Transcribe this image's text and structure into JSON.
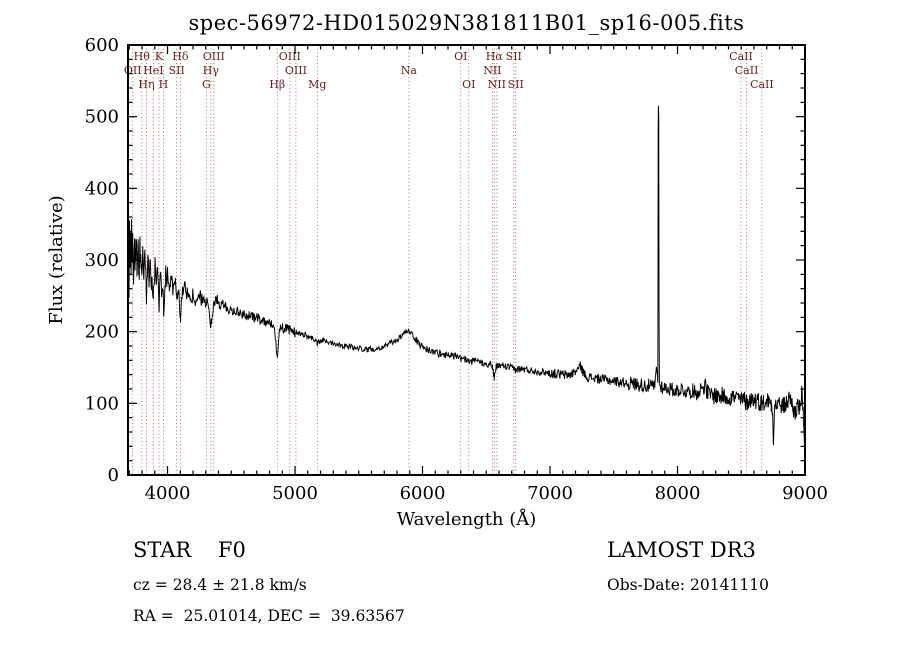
{
  "title": "spec-56972-HD015029N381811B01_sp16-005.fits",
  "annotations": {
    "class_line": "STAR    F0",
    "cz_line": "cz = 28.4 ± 21.8 km/s",
    "radec_line": "RA =  25.01014, DEC =  39.63567",
    "survey": "LAMOST DR3",
    "obs_date_line": "Obs-Date: 20141110"
  },
  "chart_data": {
    "type": "line",
    "title": "spec-56972-HD015029N381811B01_sp16-005.fits",
    "xlabel": "Wavelength (Å)",
    "ylabel": "Flux (relative)",
    "xlim": [
      3690,
      9000
    ],
    "ylim": [
      0,
      600
    ],
    "x_major_ticks": [
      4000,
      5000,
      6000,
      7000,
      8000,
      9000
    ],
    "x_minor_step": 100,
    "y_major_ticks": [
      0,
      100,
      200,
      300,
      400,
      500,
      600
    ],
    "y_minor_step": 20,
    "grid": false,
    "legend": "none",
    "line_color": "#000000",
    "spectral_line_color": "#a1543c",
    "spectral_label_color": "#6b1d1d",
    "label_rows_y": {
      "1": 60,
      "2": 74,
      "3": 88
    },
    "spectral_lines": [
      {
        "label": "Hθ",
        "wavelength": 3798,
        "row": 1
      },
      {
        "label": "K",
        "wavelength": 3933,
        "row": 1
      },
      {
        "label": "Hδ",
        "wavelength": 4101,
        "row": 1
      },
      {
        "label": "OIII",
        "wavelength": 4363,
        "row": 1
      },
      {
        "label": "OIII",
        "wavelength": 4959,
        "row": 1
      },
      {
        "label": "OI",
        "wavelength": 6300,
        "row": 1
      },
      {
        "label": "Hα",
        "wavelength": 6563,
        "row": 1
      },
      {
        "label": "SII",
        "wavelength": 6716,
        "row": 1
      },
      {
        "label": "CaII",
        "wavelength": 8498,
        "row": 1
      },
      {
        "label": "OII",
        "wavelength": 3727,
        "row": 2
      },
      {
        "label": "HeI",
        "wavelength": 3889,
        "row": 2
      },
      {
        "label": "SII",
        "wavelength": 4072,
        "row": 2
      },
      {
        "label": "Hγ",
        "wavelength": 4340,
        "row": 2
      },
      {
        "label": "OIII",
        "wavelength": 5007,
        "row": 2
      },
      {
        "label": "Na",
        "wavelength": 5893,
        "row": 2
      },
      {
        "label": "NII",
        "wavelength": 6548,
        "row": 2
      },
      {
        "label": "CaII",
        "wavelength": 8542,
        "row": 2
      },
      {
        "label": "Hη",
        "wavelength": 3835,
        "row": 3
      },
      {
        "label": "H",
        "wavelength": 3968,
        "row": 3
      },
      {
        "label": "G",
        "wavelength": 4305,
        "row": 3
      },
      {
        "label": "Hβ",
        "wavelength": 4861,
        "row": 3
      },
      {
        "label": "Mg",
        "wavelength": 5175,
        "row": 3
      },
      {
        "label": "OI",
        "wavelength": 6363,
        "row": 3
      },
      {
        "label": "NII",
        "wavelength": 6583,
        "row": 3
      },
      {
        "label": "SII",
        "wavelength": 6731,
        "row": 3
      },
      {
        "label": "CaII",
        "wavelength": 8662,
        "row": 3
      }
    ],
    "spectrum_control_points": [
      [
        3690,
        315
      ],
      [
        3694,
        352
      ],
      [
        3698,
        248
      ],
      [
        3702,
        340
      ],
      [
        3706,
        300
      ],
      [
        3710,
        352
      ],
      [
        3714,
        262
      ],
      [
        3718,
        330
      ],
      [
        3723,
        285
      ],
      [
        3727,
        320
      ],
      [
        3732,
        255
      ],
      [
        3738,
        340
      ],
      [
        3745,
        295
      ],
      [
        3752,
        330
      ],
      [
        3760,
        285
      ],
      [
        3768,
        325
      ],
      [
        3776,
        270
      ],
      [
        3784,
        318
      ],
      [
        3792,
        285
      ],
      [
        3798,
        262
      ],
      [
        3806,
        312
      ],
      [
        3814,
        290
      ],
      [
        3822,
        305
      ],
      [
        3835,
        252
      ],
      [
        3845,
        298
      ],
      [
        3855,
        275
      ],
      [
        3865,
        295
      ],
      [
        3875,
        268
      ],
      [
        3889,
        248
      ],
      [
        3900,
        290
      ],
      [
        3912,
        275
      ],
      [
        3922,
        282
      ],
      [
        3933,
        232
      ],
      [
        3942,
        280
      ],
      [
        3952,
        262
      ],
      [
        3960,
        272
      ],
      [
        3970,
        238
      ],
      [
        3980,
        272
      ],
      [
        3990,
        278
      ],
      [
        4000,
        282
      ],
      [
        4015,
        262
      ],
      [
        4030,
        272
      ],
      [
        4045,
        258
      ],
      [
        4060,
        268
      ],
      [
        4075,
        250
      ],
      [
        4088,
        262
      ],
      [
        4101,
        212
      ],
      [
        4115,
        258
      ],
      [
        4130,
        262
      ],
      [
        4150,
        252
      ],
      [
        4170,
        257
      ],
      [
        4190,
        248
      ],
      [
        4210,
        252
      ],
      [
        4226,
        232
      ],
      [
        4245,
        250
      ],
      [
        4265,
        245
      ],
      [
        4285,
        248
      ],
      [
        4305,
        235
      ],
      [
        4322,
        242
      ],
      [
        4340,
        204
      ],
      [
        4360,
        240
      ],
      [
        4380,
        243
      ],
      [
        4405,
        238
      ],
      [
        4430,
        240
      ],
      [
        4460,
        233
      ],
      [
        4490,
        230
      ],
      [
        4520,
        230
      ],
      [
        4560,
        226
      ],
      [
        4600,
        224
      ],
      [
        4640,
        222
      ],
      [
        4680,
        220
      ],
      [
        4720,
        218
      ],
      [
        4760,
        215
      ],
      [
        4800,
        212
      ],
      [
        4830,
        210
      ],
      [
        4861,
        167
      ],
      [
        4880,
        206
      ],
      [
        4910,
        205
      ],
      [
        4940,
        203
      ],
      [
        4970,
        202
      ],
      [
        5007,
        198
      ],
      [
        5040,
        197
      ],
      [
        5075,
        196
      ],
      [
        5110,
        193
      ],
      [
        5145,
        190
      ],
      [
        5175,
        183
      ],
      [
        5210,
        188
      ],
      [
        5250,
        186
      ],
      [
        5290,
        185
      ],
      [
        5330,
        183
      ],
      [
        5370,
        181
      ],
      [
        5410,
        180
      ],
      [
        5450,
        178
      ],
      [
        5490,
        177
      ],
      [
        5530,
        176
      ],
      [
        5570,
        175
      ],
      [
        5610,
        176
      ],
      [
        5650,
        177
      ],
      [
        5690,
        179
      ],
      [
        5730,
        182
      ],
      [
        5770,
        186
      ],
      [
        5810,
        190
      ],
      [
        5850,
        196
      ],
      [
        5880,
        201
      ],
      [
        5893,
        203
      ],
      [
        5910,
        199
      ],
      [
        5930,
        193
      ],
      [
        5955,
        187
      ],
      [
        5980,
        182
      ],
      [
        6010,
        178
      ],
      [
        6040,
        175
      ],
      [
        6070,
        173
      ],
      [
        6100,
        171
      ],
      [
        6140,
        169
      ],
      [
        6180,
        168
      ],
      [
        6220,
        167
      ],
      [
        6260,
        165
      ],
      [
        6300,
        162
      ],
      [
        6330,
        162
      ],
      [
        6363,
        158
      ],
      [
        6395,
        159
      ],
      [
        6430,
        158
      ],
      [
        6465,
        157
      ],
      [
        6500,
        156
      ],
      [
        6530,
        154
      ],
      [
        6548,
        152
      ],
      [
        6563,
        136
      ],
      [
        6580,
        151
      ],
      [
        6600,
        153
      ],
      [
        6640,
        152
      ],
      [
        6680,
        150
      ],
      [
        6716,
        148
      ],
      [
        6731,
        147
      ],
      [
        6770,
        148
      ],
      [
        6810,
        147
      ],
      [
        6850,
        146
      ],
      [
        6890,
        145
      ],
      [
        6930,
        144
      ],
      [
        6970,
        143
      ],
      [
        7010,
        142
      ],
      [
        7050,
        141
      ],
      [
        7090,
        140
      ],
      [
        7130,
        139
      ],
      [
        7170,
        141
      ],
      [
        7210,
        146
      ],
      [
        7240,
        152
      ],
      [
        7270,
        140
      ],
      [
        7310,
        136
      ],
      [
        7350,
        135
      ],
      [
        7390,
        134
      ],
      [
        7430,
        133
      ],
      [
        7470,
        132
      ],
      [
        7510,
        131
      ],
      [
        7550,
        130
      ],
      [
        7590,
        129
      ],
      [
        7630,
        128
      ],
      [
        7670,
        127
      ],
      [
        7710,
        126
      ],
      [
        7750,
        125
      ],
      [
        7790,
        124
      ],
      [
        7820,
        123
      ],
      [
        7838,
        150
      ],
      [
        7846,
        128
      ],
      [
        7848,
        480
      ],
      [
        7850,
        515
      ],
      [
        7853,
        500
      ],
      [
        7855,
        230
      ],
      [
        7858,
        126
      ],
      [
        7880,
        123
      ],
      [
        7910,
        121
      ],
      [
        7940,
        120
      ],
      [
        7970,
        119
      ],
      [
        8000,
        118
      ],
      [
        8030,
        120
      ],
      [
        8060,
        117
      ],
      [
        8090,
        116
      ],
      [
        8120,
        118
      ],
      [
        8150,
        114
      ],
      [
        8180,
        120
      ],
      [
        8210,
        126
      ],
      [
        8240,
        113
      ],
      [
        8270,
        112
      ],
      [
        8300,
        111
      ],
      [
        8330,
        110
      ],
      [
        8360,
        110
      ],
      [
        8390,
        109
      ],
      [
        8420,
        109
      ],
      [
        8450,
        108
      ],
      [
        8480,
        107
      ],
      [
        8498,
        103
      ],
      [
        8520,
        106
      ],
      [
        8542,
        101
      ],
      [
        8565,
        105
      ],
      [
        8590,
        106
      ],
      [
        8620,
        104
      ],
      [
        8645,
        103
      ],
      [
        8662,
        99
      ],
      [
        8690,
        103
      ],
      [
        8715,
        104
      ],
      [
        8735,
        100
      ],
      [
        8745,
        95
      ],
      [
        8752,
        42
      ],
      [
        8762,
        95
      ],
      [
        8785,
        100
      ],
      [
        8810,
        97
      ],
      [
        8835,
        96
      ],
      [
        8860,
        102
      ],
      [
        8885,
        108
      ],
      [
        8905,
        92
      ],
      [
        8925,
        88
      ],
      [
        8945,
        98
      ],
      [
        8960,
        92
      ],
      [
        8975,
        112
      ],
      [
        8988,
        80
      ],
      [
        9000,
        28
      ]
    ],
    "noise": {
      "seed": 987654321,
      "step": 4,
      "amplitude_bands": [
        [
          3760,
          28
        ],
        [
          4000,
          18
        ],
        [
          4400,
          11
        ],
        [
          5000,
          7
        ],
        [
          5900,
          4
        ],
        [
          7000,
          5
        ],
        [
          7600,
          7
        ],
        [
          8200,
          10
        ],
        [
          9001,
          13
        ]
      ],
      "quiet_zones": [
        [
          7840,
          7862
        ],
        [
          8746,
          8760
        ]
      ]
    }
  }
}
